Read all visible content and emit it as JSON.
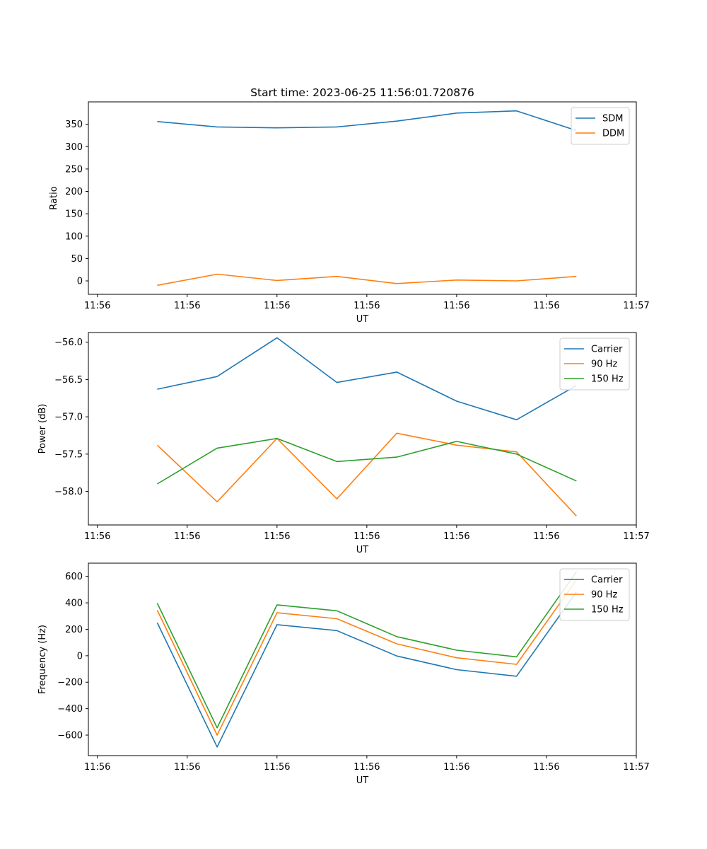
{
  "figure": {
    "title": "Start time: 2023-06-25 11:56:01.720876"
  },
  "colors": {
    "blue": "#1f77b4",
    "orange": "#ff7f0e",
    "green": "#2ca02c"
  },
  "chart_data": [
    {
      "type": "line",
      "title": "Start time: 2023-06-25 11:56:01.720876",
      "xlabel": "UT",
      "ylabel": "Ratio",
      "x": [
        1,
        2,
        3,
        4,
        5,
        6,
        7,
        8
      ],
      "xlim": [
        -0.15,
        9.0
      ],
      "xticks": [
        0.0,
        1.5,
        3.0,
        4.5,
        6.0,
        7.5,
        9.0
      ],
      "xtick_labels": [
        "11:56",
        "11:56",
        "11:56",
        "11:56",
        "11:56",
        "11:56",
        "11:57"
      ],
      "ylim": [
        -30,
        400
      ],
      "yticks": [
        0,
        50,
        100,
        150,
        200,
        250,
        300,
        350
      ],
      "grid": false,
      "legend_position": "upper right",
      "series": [
        {
          "name": "SDM",
          "color": "#1f77b4",
          "values": [
            356,
            344,
            342,
            344,
            357,
            375,
            380,
            336
          ]
        },
        {
          "name": "DDM",
          "color": "#ff7f0e",
          "values": [
            -10,
            15,
            1,
            10,
            -6,
            2,
            0,
            10
          ]
        }
      ]
    },
    {
      "type": "line",
      "xlabel": "UT",
      "ylabel": "Power (dB)",
      "x": [
        1,
        2,
        3,
        4,
        5,
        6,
        7,
        8
      ],
      "xlim": [
        -0.15,
        9.0
      ],
      "xticks": [
        0.0,
        1.5,
        3.0,
        4.5,
        6.0,
        7.5,
        9.0
      ],
      "xtick_labels": [
        "11:56",
        "11:56",
        "11:56",
        "11:56",
        "11:56",
        "11:56",
        "11:57"
      ],
      "ylim": [
        -58.45,
        -55.87
      ],
      "yticks": [
        -58.0,
        -57.5,
        -57.0,
        -56.5,
        -56.0
      ],
      "ytick_labels": [
        "−58.0",
        "−57.5",
        "−57.0",
        "−56.5",
        "−56.0"
      ],
      "grid": false,
      "legend_position": "upper right",
      "series": [
        {
          "name": "Carrier",
          "color": "#1f77b4",
          "values": [
            -56.63,
            -56.46,
            -55.94,
            -56.54,
            -56.4,
            -56.79,
            -57.04,
            -56.58
          ]
        },
        {
          "name": "90 Hz",
          "color": "#ff7f0e",
          "values": [
            -57.38,
            -58.14,
            -57.29,
            -58.1,
            -57.22,
            -57.38,
            -57.47,
            -58.33
          ]
        },
        {
          "name": "150 Hz",
          "color": "#2ca02c",
          "values": [
            -57.9,
            -57.42,
            -57.29,
            -57.6,
            -57.54,
            -57.33,
            -57.5,
            -57.86
          ]
        }
      ]
    },
    {
      "type": "line",
      "xlabel": "UT",
      "ylabel": "Frequency (Hz)",
      "x": [
        1,
        2,
        3,
        4,
        5,
        6,
        7,
        8
      ],
      "xlim": [
        -0.15,
        9.0
      ],
      "xticks": [
        0.0,
        1.5,
        3.0,
        4.5,
        6.0,
        7.5,
        9.0
      ],
      "xtick_labels": [
        "11:56",
        "11:56",
        "11:56",
        "11:56",
        "11:56",
        "11:56",
        "11:57"
      ],
      "ylim": [
        -755,
        700
      ],
      "yticks": [
        -600,
        -400,
        -200,
        0,
        200,
        400,
        600
      ],
      "ytick_labels": [
        "−600",
        "−400",
        "−200",
        "0",
        "200",
        "400",
        "600"
      ],
      "grid": false,
      "legend_position": "upper right",
      "series": [
        {
          "name": "Carrier",
          "color": "#1f77b4",
          "values": [
            250,
            -690,
            235,
            190,
            -2,
            -105,
            -155,
            483
          ]
        },
        {
          "name": "90 Hz",
          "color": "#ff7f0e",
          "values": [
            345,
            -600,
            325,
            280,
            90,
            -15,
            -65,
            573
          ]
        },
        {
          "name": "150 Hz",
          "color": "#2ca02c",
          "values": [
            398,
            -545,
            385,
            340,
            145,
            42,
            -8,
            635
          ]
        }
      ]
    }
  ]
}
